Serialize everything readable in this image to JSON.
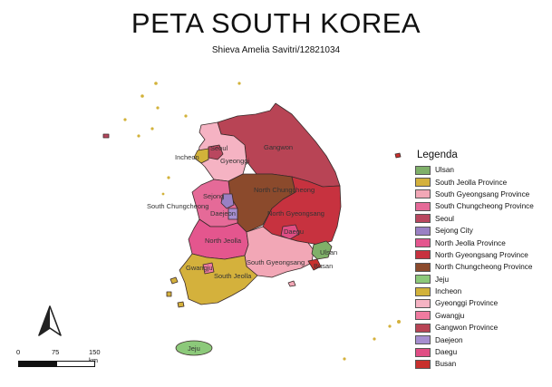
{
  "title": "PETA SOUTH KOREA",
  "subtitle": "Shieva Amelia Savitri/12821034",
  "legend": {
    "title": "Legenda",
    "items": [
      {
        "label": "Ulsan",
        "color": "#7fb069"
      },
      {
        "label": "South Jeolla Province",
        "color": "#d4b13c"
      },
      {
        "label": "South Gyeongsang Province",
        "color": "#f2a7b6"
      },
      {
        "label": "South Chungcheong Province",
        "color": "#e56a98"
      },
      {
        "label": "Seoul",
        "color": "#b9475f"
      },
      {
        "label": "Sejong City",
        "color": "#9a80c4"
      },
      {
        "label": "North Jeolla Province",
        "color": "#e4568e"
      },
      {
        "label": "North Gyeongsang Province",
        "color": "#c7323f"
      },
      {
        "label": "North Chungcheong Province",
        "color": "#8b4a2c"
      },
      {
        "label": "Jeju",
        "color": "#8cc97a"
      },
      {
        "label": "Incheon",
        "color": "#d2b23a"
      },
      {
        "label": "Gyeonggi Province",
        "color": "#f5b3c3"
      },
      {
        "label": "Gwangju",
        "color": "#f07ba0"
      },
      {
        "label": "Gangwon Province",
        "color": "#b84455"
      },
      {
        "label": "Daejeon",
        "color": "#a68ed0"
      },
      {
        "label": "Daegu",
        "color": "#e04d84"
      },
      {
        "label": "Busan",
        "color": "#c8302d"
      }
    ]
  },
  "map_labels": {
    "seoul": "Seoul",
    "incheon": "Incheon",
    "gyeonggi": "Gyeonggi",
    "gangwon": "Gangwon",
    "sejong": "Sejong",
    "daejeon": "Daejeon",
    "north_chungcheong": "North Chungcheong",
    "south_chungcheong": "South Chungcheong",
    "north_gyeongsang": "North Gyeongsang",
    "north_jeolla": "North Jeolla",
    "daegu": "Daegu",
    "ulsan": "Ulsan",
    "busan": "Busan",
    "south_gyeongsang": "South Gyeongsang",
    "gwangju": "Gwangju",
    "south_jeolla": "South Jeolla",
    "jeju": "Jeju"
  },
  "scale": {
    "labels": [
      "0",
      "75",
      "150 km"
    ]
  },
  "north_arrow": {
    "label": "N"
  }
}
